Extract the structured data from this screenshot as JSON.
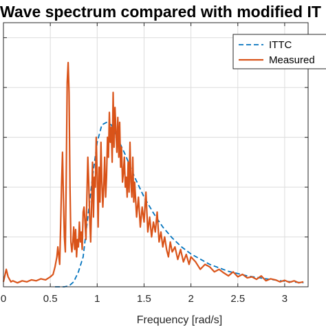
{
  "chart_data": {
    "type": "line",
    "title": "Wave spectrum compared with modified IT",
    "xlabel": "Frequency [rad/s]",
    "ylabel": "",
    "xlim": [
      0,
      3.25
    ],
    "ylim": [
      0,
      5.3
    ],
    "xticks": [
      0,
      0.5,
      1,
      1.5,
      2,
      2.5,
      3
    ],
    "xtick_labels": [
      "0",
      "0.5",
      "1",
      "1.5",
      "2",
      "2.5",
      "3"
    ],
    "yticks": [
      1,
      2,
      3,
      4,
      5
    ],
    "grid": true,
    "legend_position": "top-right",
    "series": [
      {
        "name": "ITTC",
        "style": "dashed",
        "color": "#0072BD",
        "x": [
          0.55,
          0.6,
          0.65,
          0.7,
          0.75,
          0.8,
          0.85,
          0.9,
          0.95,
          1.0,
          1.05,
          1.1,
          1.15,
          1.2,
          1.3,
          1.4,
          1.5,
          1.6,
          1.7,
          1.8,
          1.9,
          2.0,
          2.2,
          2.4,
          2.6,
          2.8,
          3.0,
          3.2
        ],
        "y": [
          0.0,
          0.0,
          0.0,
          0.02,
          0.1,
          0.3,
          0.6,
          1.4,
          2.2,
          2.9,
          3.25,
          3.3,
          3.25,
          3.05,
          2.65,
          2.2,
          1.8,
          1.48,
          1.2,
          0.98,
          0.8,
          0.66,
          0.45,
          0.31,
          0.22,
          0.16,
          0.11,
          0.08
        ]
      },
      {
        "name": "Measured",
        "style": "solid",
        "color": "#D95319",
        "x": [
          0.0,
          0.03,
          0.05,
          0.08,
          0.1,
          0.15,
          0.2,
          0.25,
          0.3,
          0.35,
          0.4,
          0.45,
          0.5,
          0.53,
          0.55,
          0.57,
          0.58,
          0.6,
          0.61,
          0.62,
          0.63,
          0.64,
          0.65,
          0.66,
          0.67,
          0.68,
          0.69,
          0.7,
          0.71,
          0.72,
          0.73,
          0.74,
          0.75,
          0.76,
          0.77,
          0.78,
          0.79,
          0.8,
          0.81,
          0.82,
          0.83,
          0.84,
          0.85,
          0.86,
          0.87,
          0.88,
          0.89,
          0.9,
          0.91,
          0.92,
          0.93,
          0.94,
          0.95,
          0.96,
          0.97,
          0.98,
          0.99,
          1.0,
          1.01,
          1.02,
          1.03,
          1.04,
          1.05,
          1.06,
          1.07,
          1.08,
          1.09,
          1.1,
          1.11,
          1.12,
          1.13,
          1.14,
          1.15,
          1.16,
          1.17,
          1.18,
          1.19,
          1.2,
          1.21,
          1.22,
          1.23,
          1.24,
          1.25,
          1.26,
          1.27,
          1.28,
          1.29,
          1.3,
          1.31,
          1.32,
          1.33,
          1.34,
          1.35,
          1.36,
          1.37,
          1.38,
          1.39,
          1.4,
          1.42,
          1.44,
          1.46,
          1.48,
          1.5,
          1.52,
          1.54,
          1.56,
          1.58,
          1.6,
          1.62,
          1.64,
          1.66,
          1.68,
          1.7,
          1.72,
          1.74,
          1.76,
          1.78,
          1.8,
          1.83,
          1.86,
          1.89,
          1.92,
          1.95,
          1.98,
          2.0,
          2.05,
          2.1,
          2.15,
          2.2,
          2.25,
          2.3,
          2.35,
          2.4,
          2.45,
          2.5,
          2.55,
          2.6,
          2.65,
          2.7,
          2.75,
          2.8,
          2.85,
          2.9,
          2.95,
          3.0,
          3.05,
          3.1,
          3.15,
          3.2
        ],
        "y": [
          0.1,
          0.35,
          0.2,
          0.1,
          0.12,
          0.08,
          0.12,
          0.1,
          0.14,
          0.12,
          0.16,
          0.14,
          0.2,
          0.25,
          0.4,
          0.6,
          0.8,
          0.45,
          1.2,
          2.05,
          2.7,
          1.8,
          1.0,
          0.7,
          2.2,
          4.1,
          4.5,
          3.9,
          2.0,
          0.9,
          0.7,
          0.9,
          1.2,
          0.75,
          1.15,
          0.6,
          0.95,
          0.8,
          1.3,
          0.9,
          1.1,
          0.75,
          1.5,
          1.6,
          1.3,
          0.95,
          1.8,
          2.6,
          2.1,
          1.4,
          0.9,
          1.6,
          2.5,
          1.4,
          2.2,
          2.0,
          3.0,
          2.2,
          1.2,
          2.4,
          1.7,
          2.9,
          2.1,
          1.6,
          2.0,
          2.6,
          1.8,
          2.2,
          3.0,
          2.6,
          3.5,
          2.9,
          3.2,
          2.5,
          3.9,
          2.8,
          3.6,
          3.1,
          2.7,
          3.4,
          2.6,
          3.3,
          2.4,
          2.8,
          2.1,
          2.3,
          2.6,
          2.0,
          2.2,
          1.8,
          2.5,
          1.9,
          2.9,
          2.1,
          1.8,
          2.6,
          1.7,
          2.1,
          1.4,
          1.8,
          1.2,
          1.6,
          1.3,
          1.9,
          1.1,
          1.4,
          1.0,
          1.3,
          1.1,
          1.5,
          0.9,
          1.1,
          0.8,
          1.0,
          0.75,
          0.6,
          0.9,
          0.7,
          0.8,
          0.55,
          0.75,
          0.5,
          0.65,
          0.45,
          0.6,
          0.5,
          0.35,
          0.45,
          0.4,
          0.3,
          0.35,
          0.28,
          0.22,
          0.3,
          0.2,
          0.25,
          0.18,
          0.2,
          0.15,
          0.22,
          0.12,
          0.16,
          0.14,
          0.1,
          0.13,
          0.09,
          0.12,
          0.08,
          0.1
        ]
      }
    ]
  }
}
